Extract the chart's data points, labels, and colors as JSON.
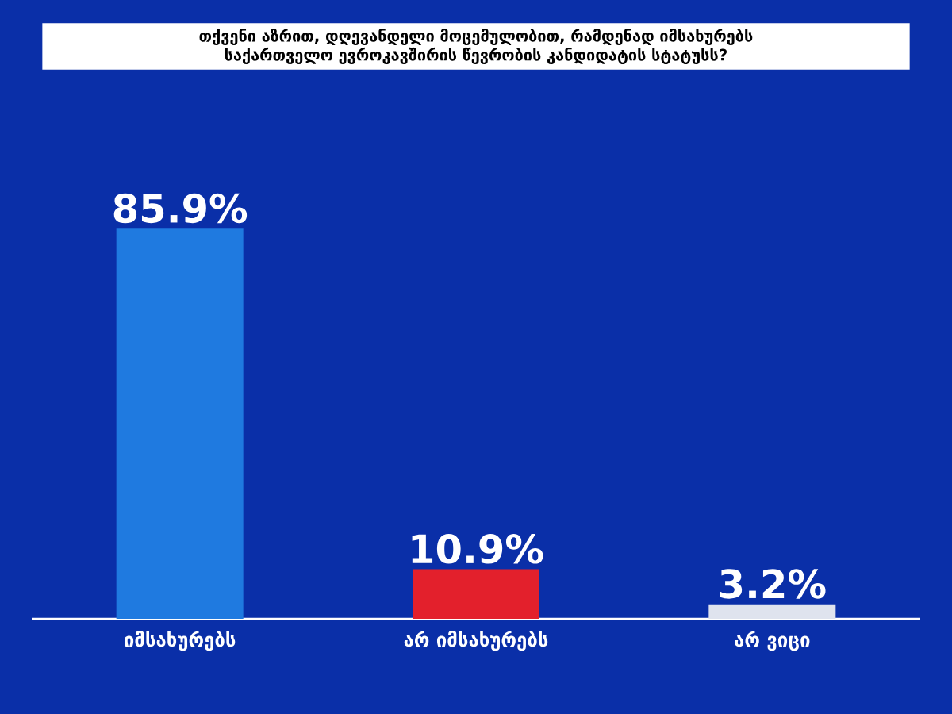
{
  "chart_data": {
    "type": "bar",
    "title": "თქვენი აზრით, დღევანდელი მოცემულობით, რამდენად იმსახურებს საქართველო ევროკავშირის წევრობის კანდიდატის სტატუსს?",
    "categories": [
      "იმსახურებს",
      "არ იმსახურებს",
      "არ ვიცი"
    ],
    "values": [
      85.9,
      10.9,
      3.2
    ],
    "colors": [
      "#1f7ae0",
      "#e3202c",
      "#dfe3ee"
    ],
    "value_labels": [
      "85.9%",
      "10.9%",
      "3.2%"
    ]
  }
}
